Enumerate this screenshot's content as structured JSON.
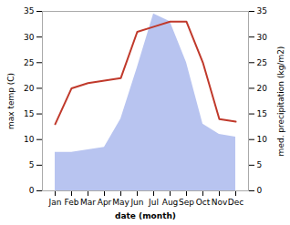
{
  "chart_data": {
    "type": "line",
    "categories": [
      "Jan",
      "Feb",
      "Mar",
      "Apr",
      "May",
      "Jun",
      "Jul",
      "Aug",
      "Sep",
      "Oct",
      "Nov",
      "Dec"
    ],
    "series": [
      {
        "type": "line",
        "color": "#c0392b",
        "values": [
          13.0,
          20.0,
          21.0,
          21.5,
          22.0,
          31.0,
          32.0,
          33.0,
          33.0,
          25.0,
          14.0,
          13.5
        ]
      },
      {
        "type": "area",
        "color": "#b8c4f0",
        "axis": "y2",
        "values": [
          7.5,
          7.5,
          8.0,
          8.5,
          14.0,
          24.0,
          34.5,
          33.0,
          25.0,
          13.0,
          11.0,
          10.5
        ]
      }
    ],
    "xlabel": "date (month)",
    "ylabel": "max temp (C)",
    "y2label": "med. precipitation (kg/m2)",
    "ylim": [
      0,
      35
    ],
    "yticks": [
      0,
      5,
      10,
      15,
      20,
      25,
      30,
      35
    ],
    "y2lim": [
      0,
      35
    ],
    "y2ticks": [
      0,
      5,
      10,
      15,
      20,
      25,
      30,
      35
    ],
    "grid": false
  }
}
